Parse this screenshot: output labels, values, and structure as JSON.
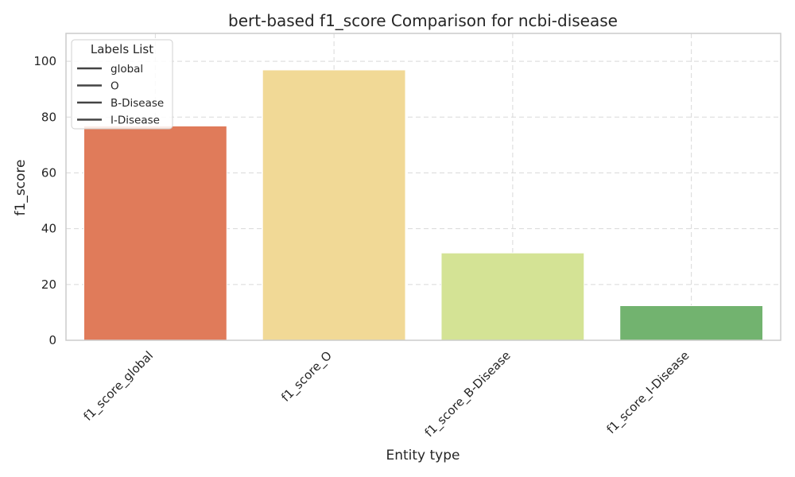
{
  "chart_data": {
    "type": "bar",
    "title": "bert-based f1_score Comparison for ncbi-disease",
    "xlabel": "Entity type",
    "ylabel": "f1_score",
    "categories": [
      "f1_score_global",
      "f1_score_O",
      "f1_score_B-Disease",
      "f1_score_I-Disease"
    ],
    "values": [
      76.8,
      96.9,
      31.3,
      12.4
    ],
    "colors": [
      "#e07b5a",
      "#f1d996",
      "#d4e395",
      "#72b36f"
    ],
    "ylim": [
      0,
      110
    ],
    "yticks": [
      0,
      20,
      40,
      60,
      80,
      100
    ],
    "grid": true,
    "legend": {
      "title": "Labels List",
      "placement": "top-left",
      "entries": [
        "global",
        "O",
        "B-Disease",
        "I-Disease"
      ]
    }
  }
}
